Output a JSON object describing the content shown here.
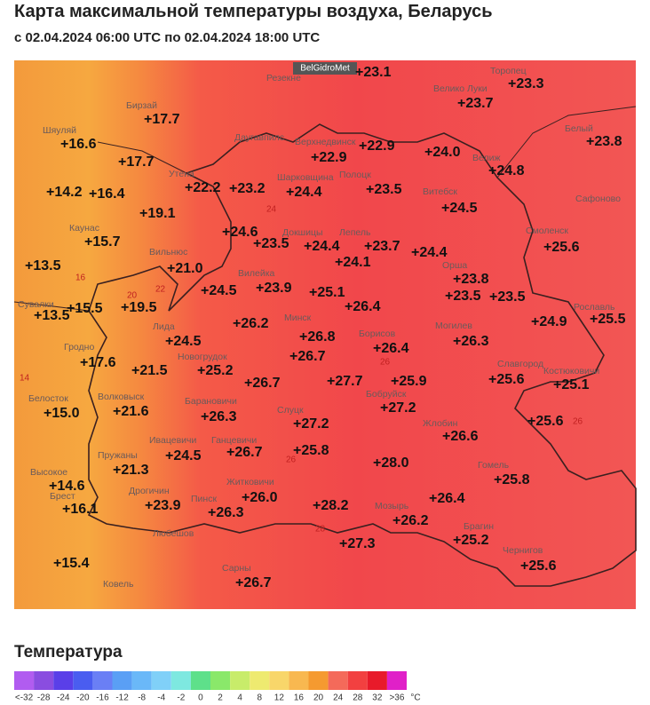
{
  "header": {
    "title": "Карта максимальной температуры воздуха, Беларусь",
    "subtitle": "с 02.04.2024 06:00 UTC по 02.04.2024 18:00 UTC"
  },
  "map": {
    "source": "BelGidroMet",
    "temperatures": [
      "+23.1",
      "+23.3",
      "+23.7",
      "+17.7",
      "+16.6",
      "+22.9",
      "+22.9",
      "+24.0",
      "+23.8",
      "+17.7",
      "+24.8",
      "+22.2",
      "+23.2",
      "+24.4",
      "+23.5",
      "+14.2",
      "+16.4",
      "+19.1",
      "+24.5",
      "+24.6",
      "+15.7",
      "+23.5",
      "+24.4",
      "+23.7",
      "+25.6",
      "+24.4",
      "+24.1",
      "+13.5",
      "+21.0",
      "+23.8",
      "+24.5",
      "+23.9",
      "+25.1",
      "+23.5",
      "+23.5",
      "+26.4",
      "+13.5",
      "+15.5",
      "+19.5",
      "+26.2",
      "+24.9",
      "+25.5",
      "+26.8",
      "+24.5",
      "+26.4",
      "+26.3",
      "+17.6",
      "+21.5",
      "+25.2",
      "+26.7",
      "+26.7",
      "+27.7",
      "+25.9",
      "+25.6",
      "+25.1",
      "+15.0",
      "+21.6",
      "+27.2",
      "+26.3",
      "+27.2",
      "+25.6",
      "+26.6",
      "+24.5",
      "+26.7",
      "+25.8",
      "+28.0",
      "+14.6",
      "+21.3",
      "+25.8",
      "+23.9",
      "+26.0",
      "+28.2",
      "+26.4",
      "+16.1",
      "+26.3",
      "+26.2",
      "+15.4",
      "+27.3",
      "+25.2",
      "+25.6",
      "+26.7"
    ],
    "cities": [
      "Шяуляй",
      "Бирзай",
      "Резекне",
      "Торопец",
      "Велико Луки",
      "Даугавпилс",
      "Верхнедвинск",
      "Белый",
      "Велиж",
      "Утена",
      "Шарковщина",
      "Полоцк",
      "Витебск",
      "Каунас",
      "Сафоново",
      "Вильнюс",
      "Докшицы",
      "Лепель",
      "Орша",
      "Смоленск",
      "Сувалки",
      "Вилейка",
      "Рославль",
      "Минск",
      "Борисов",
      "Могилев",
      "Гродно",
      "Лида",
      "Новогрудок",
      "Славгород",
      "Костюковичи",
      "Белосток",
      "Волковыск",
      "Барановичи",
      "Слуцк",
      "Бобруйск",
      "Жлобин",
      "Ивацевичи",
      "Ганцевичи",
      "Пружаны",
      "Высокое",
      "Брест",
      "Дрогичин",
      "Пинск",
      "Житковичи",
      "Мозырь",
      "Гомель",
      "Брагин",
      "Чернигов",
      "Любешов",
      "Ковель",
      "Сарны"
    ],
    "isolines": [
      "16",
      "20",
      "22",
      "14",
      "24",
      "26",
      "28",
      "26",
      "26"
    ]
  },
  "legend": {
    "title": "Температура",
    "unit": "°C",
    "items": [
      {
        "label": "<-32",
        "color": "#b15cf0"
      },
      {
        "label": "-28",
        "color": "#8a4de0"
      },
      {
        "label": "-24",
        "color": "#5a3fe8"
      },
      {
        "label": "-20",
        "color": "#4a5df0"
      },
      {
        "label": "-16",
        "color": "#6a7ff5"
      },
      {
        "label": "-12",
        "color": "#5a9ff5"
      },
      {
        "label": "-8",
        "color": "#6ab8f8"
      },
      {
        "label": "-4",
        "color": "#80d0f8"
      },
      {
        "label": "-2",
        "color": "#7ee8e0"
      },
      {
        "label": "0",
        "color": "#5ee08a"
      },
      {
        "label": "2",
        "color": "#8ae86a"
      },
      {
        "label": "4",
        "color": "#c8ec6a"
      },
      {
        "label": "8",
        "color": "#eeea70"
      },
      {
        "label": "12",
        "color": "#f8d66a"
      },
      {
        "label": "16",
        "color": "#f8b850"
      },
      {
        "label": "20",
        "color": "#f59a30"
      },
      {
        "label": "24",
        "color": "#f46a5a"
      },
      {
        "label": "28",
        "color": "#f24040"
      },
      {
        "label": "32",
        "color": "#e81a2a"
      },
      {
        "label": ">36",
        "color": "#e020c8"
      }
    ]
  }
}
